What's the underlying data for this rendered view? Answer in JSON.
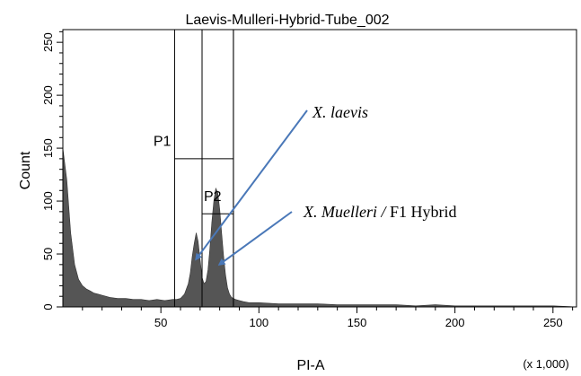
{
  "chart_data": {
    "type": "histogram",
    "title": "Laevis-Mulleri-Hybrid-Tube_002",
    "xlabel": "PI-A",
    "ylabel": "Count",
    "x_multiplier": "(x 1,000)",
    "xlim": [
      0,
      262
    ],
    "ylim": [
      0,
      262
    ],
    "x_ticks": [
      50,
      100,
      150,
      200,
      250
    ],
    "y_ticks": [
      0,
      50,
      100,
      150,
      200,
      250
    ],
    "fill_color": "#555555",
    "gates": [
      {
        "name": "P1",
        "x_start": 57,
        "x_end": 87,
        "y_level": 140
      },
      {
        "name": "P2",
        "x_start": 71,
        "x_end": 87,
        "y_level": 88
      }
    ],
    "histogram": {
      "x": [
        0,
        2,
        4,
        6,
        8,
        10,
        12,
        14,
        16,
        18,
        20,
        24,
        28,
        32,
        36,
        40,
        44,
        48,
        52,
        56,
        58,
        60,
        62,
        64,
        65,
        66,
        67,
        68,
        69,
        70,
        71,
        72,
        73,
        74,
        75,
        76,
        77,
        78,
        79,
        80,
        81,
        82,
        83,
        84,
        85,
        86,
        88,
        90,
        92,
        95,
        100,
        110,
        120,
        130,
        140,
        150,
        160,
        170,
        180,
        190,
        200,
        210,
        220,
        230,
        240,
        250,
        262
      ],
      "y": [
        150,
        120,
        70,
        40,
        26,
        20,
        17,
        15,
        13,
        12,
        11,
        9,
        8,
        8,
        7,
        7,
        6,
        7,
        6,
        7,
        7,
        8,
        12,
        22,
        32,
        48,
        60,
        70,
        62,
        45,
        28,
        22,
        24,
        35,
        55,
        80,
        100,
        112,
        108,
        92,
        70,
        48,
        30,
        18,
        12,
        9,
        7,
        6,
        5,
        4,
        4,
        3,
        3,
        3,
        2,
        2,
        2,
        2,
        1,
        2,
        1,
        1,
        1,
        1,
        1,
        1,
        0
      ]
    },
    "annotations": [
      {
        "text": "X. laevis",
        "target_x": 67,
        "target_y": 45
      },
      {
        "text_italic": "X. Muelleri",
        "text_sep": " / ",
        "text_rest": "F1 Hybrid",
        "target_x": 78,
        "target_y": 40
      }
    ],
    "annotation_color": "#4a78b8"
  }
}
